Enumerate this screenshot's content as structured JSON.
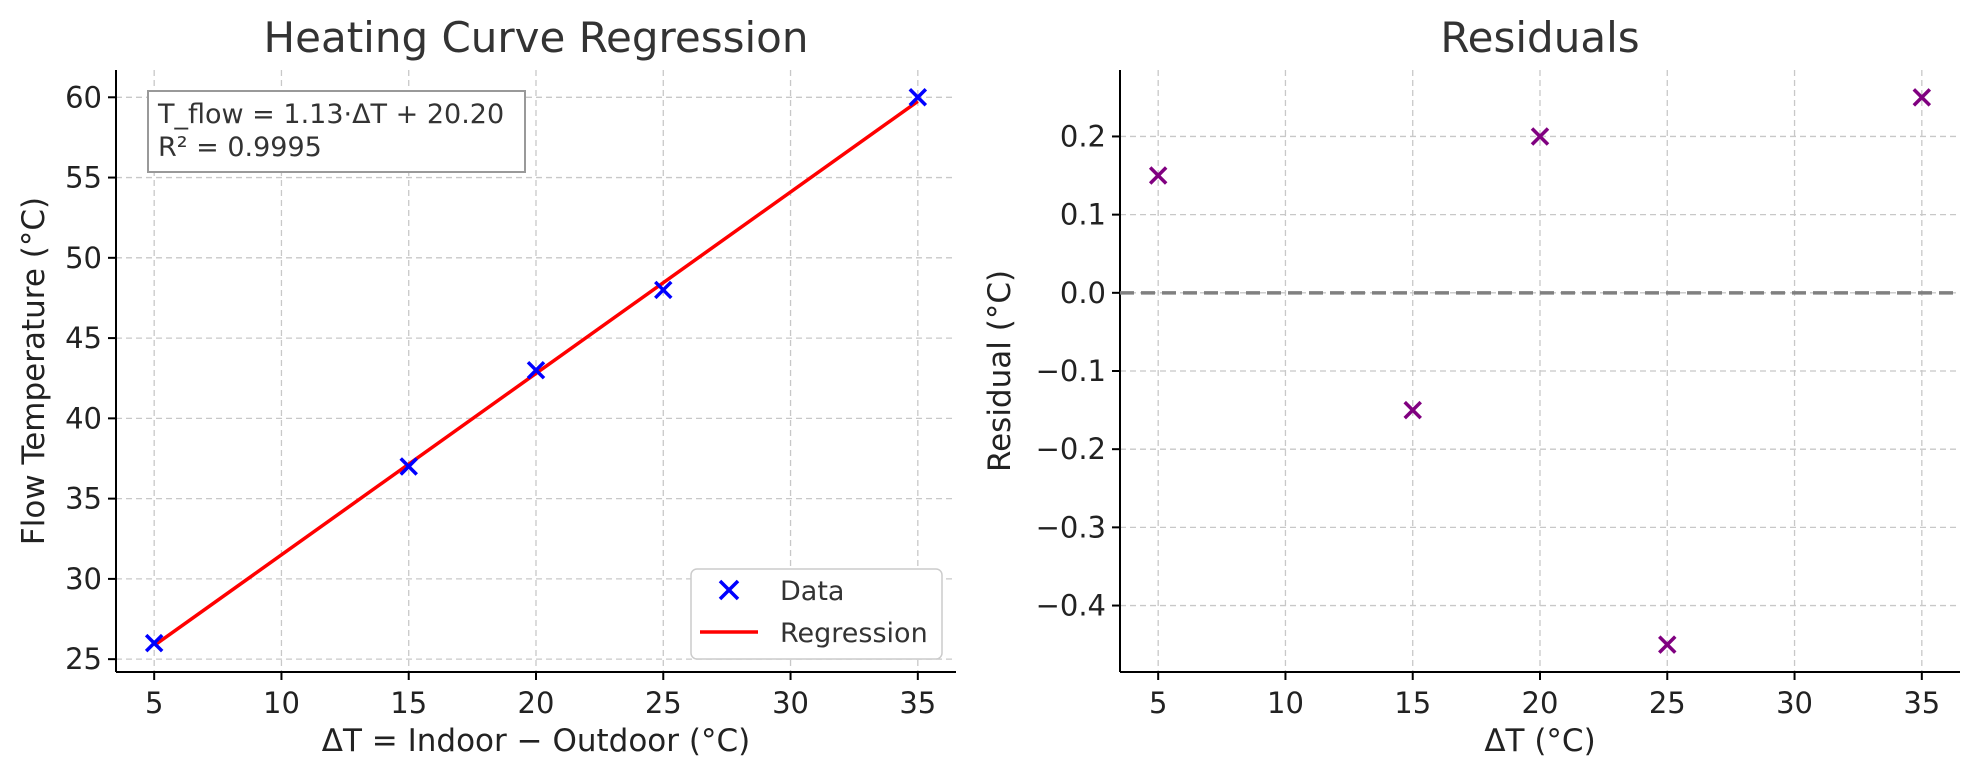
{
  "chart_data": [
    {
      "type": "scatter",
      "title": "Heating Curve Regression",
      "xlabel": "ΔT = Indoor − Outdoor (°C)",
      "ylabel": "Flow Temperature (°C)",
      "xlim": [
        3.5,
        36.5
      ],
      "ylim": [
        24.2,
        61.7
      ],
      "xticks": [
        5,
        10,
        15,
        20,
        25,
        30,
        35
      ],
      "yticks": [
        25,
        30,
        35,
        40,
        45,
        50,
        55,
        60
      ],
      "grid": true,
      "legend_position": "lower-right",
      "series": [
        {
          "name": "Data",
          "kind": "scatter",
          "marker": "x",
          "color": "#0000ff",
          "x": [
            5,
            15,
            20,
            25,
            35
          ],
          "y": [
            26,
            37,
            43,
            48,
            60
          ]
        },
        {
          "name": "Regression",
          "kind": "line",
          "color": "#ff0000",
          "slope": 1.13,
          "intercept": 20.2,
          "x": [
            5,
            35
          ]
        }
      ],
      "annotation": {
        "line1": "T_flow = 1.13·ΔT + 20.20",
        "line2": "R² = 0.9995"
      }
    },
    {
      "type": "scatter",
      "title": "Residuals",
      "xlabel": "ΔT (°C)",
      "ylabel": "Residual (°C)",
      "xlim": [
        3.5,
        36.5
      ],
      "ylim": [
        -0.485,
        0.285
      ],
      "xticks": [
        5,
        10,
        15,
        20,
        25,
        30,
        35
      ],
      "yticks": [
        -0.4,
        -0.3,
        -0.2,
        -0.1,
        0.0,
        0.1,
        0.2
      ],
      "ytick_labels": [
        "−0.4",
        "−0.3",
        "−0.2",
        "−0.1",
        "0.0",
        "0.1",
        "0.2"
      ],
      "grid": true,
      "zero_line": {
        "y": 0,
        "color": "#808080",
        "style": "dashed"
      },
      "series": [
        {
          "name": "Residuals",
          "kind": "scatter",
          "marker": "x",
          "color": "#800080",
          "x": [
            5,
            15,
            20,
            25,
            35
          ],
          "y": [
            0.15,
            -0.15,
            0.2,
            -0.45,
            0.25
          ]
        }
      ]
    }
  ]
}
